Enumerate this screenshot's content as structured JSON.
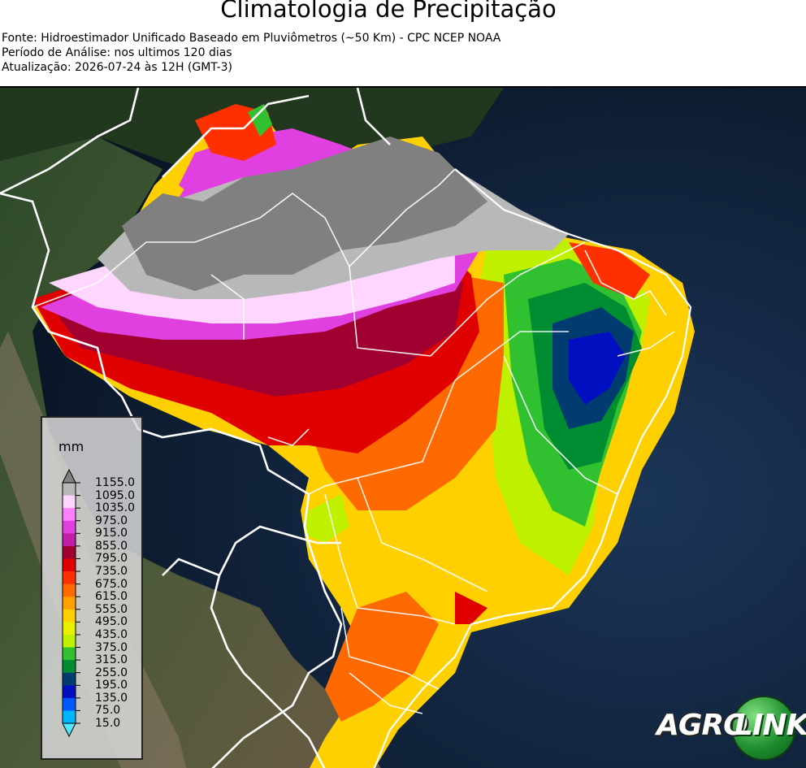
{
  "header": {
    "title": "Climatologia de Precipitação",
    "source": "Fonte: Hidroestimador Unificado Baseado em Pluviômetros (~50 Km) - CPC NCEP NOAA",
    "period": "Período de Análise: nos ultimos 120 dias",
    "updated": "Atualização: 2026-07-24 às 12H (GMT-3)"
  },
  "legend": {
    "unit": "mm",
    "levels": [
      "1155.0",
      "1095.0",
      "1035.0",
      "975.0",
      "915.0",
      "855.0",
      "795.0",
      "735.0",
      "675.0",
      "615.0",
      "555.0",
      "495.0",
      "435.0",
      "375.0",
      "315.0",
      "255.0",
      "195.0",
      "135.0",
      "75.0",
      "15.0"
    ],
    "colors": [
      "#808080",
      "#b8b8b8",
      "#ffd6ff",
      "#ff80ff",
      "#e040e0",
      "#c020a8",
      "#a00030",
      "#e00000",
      "#ff3000",
      "#ff6a00",
      "#ffa000",
      "#ffd000",
      "#e8f000",
      "#bef000",
      "#30c030",
      "#008c30",
      "#003c70",
      "#0010c0",
      "#0058ff",
      "#00b4ff",
      "#50e8ff"
    ]
  },
  "logo": {
    "part1": "AGRO",
    "part2": "LINK"
  }
}
